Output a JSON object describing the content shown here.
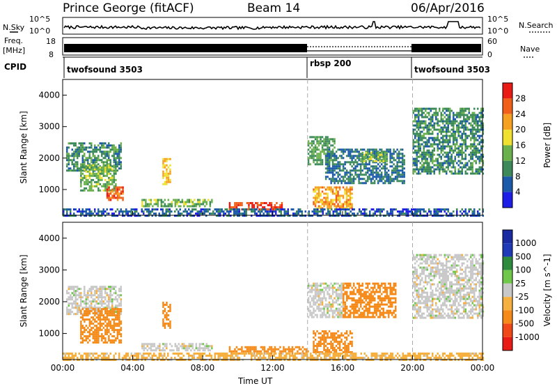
{
  "header": {
    "station": "Prince George (fitACF)",
    "beam": "Beam 14",
    "date": "06/Apr/2016"
  },
  "strip_labels": {
    "nsky": "N.Sky",
    "nsearch": "N.Search",
    "freq_line1": "Freq.",
    "freq_line2": "[MHz]",
    "nave": "Nave",
    "cpid": "CPID"
  },
  "strip_ticks": {
    "noise_left_top": "10^5",
    "noise_left_bottom": "10^0",
    "noise_right_top": "10^5",
    "noise_right_bottom": "10^0",
    "freq_left_top": "18",
    "freq_left_bottom": "8",
    "nave_right_top": "60",
    "nave_right_bottom": "0"
  },
  "cpid_segments": [
    {
      "label": "twofsound 3503",
      "start_hour": 0,
      "end_hour": 14
    },
    {
      "label": "rbsp 200",
      "start_hour": 14,
      "end_hour": 20
    },
    {
      "label": "twofsound 3503",
      "start_hour": 20,
      "end_hour": 24
    }
  ],
  "colors": {
    "power": [
      "#1e1ee6",
      "#1a5aa8",
      "#3c8a5a",
      "#6ab04c",
      "#f0e030",
      "#f5a020",
      "#f06018",
      "#e81c14"
    ],
    "velocity": [
      "#e81c14",
      "#f04818",
      "#f58a18",
      "#f5b040",
      "#c8c8c8",
      "#70c84a",
      "#2e8a3c",
      "#1e3ab8",
      "#1a2aa0"
    ]
  },
  "chart_data": [
    {
      "type": "heatmap",
      "name": "power",
      "ylabel": "Slant Range [km]",
      "xlabel": "",
      "xlim": [
        0,
        24
      ],
      "ylim": [
        180,
        4500
      ],
      "x_ticks": [
        "00:00",
        "04:00",
        "08:00",
        "12:00",
        "16:00",
        "20:00",
        "00:00"
      ],
      "y_ticks": [
        1000,
        2000,
        3000,
        4000
      ],
      "colorbar": {
        "label": "Power [dB]",
        "ticks": [
          "4",
          "8",
          "12",
          "16",
          "20",
          "24",
          "28"
        ]
      },
      "regions": [
        {
          "t": [
            0.2,
            3.3
          ],
          "r": [
            1600,
            2500
          ],
          "v": 10
        },
        {
          "t": [
            1.0,
            3.0
          ],
          "r": [
            1000,
            1800
          ],
          "v": 14
        },
        {
          "t": [
            2.5,
            3.4
          ],
          "r": [
            700,
            1100
          ],
          "v": 26
        },
        {
          "t": [
            5.7,
            6.1
          ],
          "r": [
            1200,
            2000
          ],
          "v": 20
        },
        {
          "t": [
            4.5,
            8.5
          ],
          "r": [
            500,
            700
          ],
          "v": 14
        },
        {
          "t": [
            9.5,
            12.5
          ],
          "r": [
            400,
            600
          ],
          "v": 28
        },
        {
          "t": [
            14.0,
            15.5
          ],
          "r": [
            1800,
            2700
          ],
          "v": 12
        },
        {
          "t": [
            14.3,
            16.5
          ],
          "r": [
            400,
            1100
          ],
          "v": 22
        },
        {
          "t": [
            15.0,
            19.5
          ],
          "r": [
            1200,
            2300
          ],
          "v": 8
        },
        {
          "t": [
            17.0,
            18.5
          ],
          "r": [
            1900,
            2200
          ],
          "v": 14
        },
        {
          "t": [
            20.0,
            24.0
          ],
          "r": [
            1500,
            3600
          ],
          "v": 10
        },
        {
          "t": [
            0.0,
            24.0
          ],
          "r": [
            180,
            400
          ],
          "v": 6
        }
      ]
    },
    {
      "type": "heatmap",
      "name": "velocity",
      "ylabel": "Slant Range [km]",
      "xlabel": "Time UT",
      "xlim": [
        0,
        24
      ],
      "ylim": [
        180,
        4500
      ],
      "x_ticks": [
        "00:00",
        "04:00",
        "08:00",
        "12:00",
        "16:00",
        "20:00",
        "00:00"
      ],
      "y_ticks": [
        1000,
        2000,
        3000,
        4000
      ],
      "colorbar": {
        "label": "Velocity [m s^-1]",
        "ticks": [
          "1000",
          "500",
          "100",
          "25",
          "-25",
          "-100",
          "-500",
          "-1000"
        ]
      },
      "regions": [
        {
          "t": [
            0.2,
            3.3
          ],
          "r": [
            1600,
            2500
          ],
          "v": 0
        },
        {
          "t": [
            1.0,
            3.3
          ],
          "r": [
            700,
            1800
          ],
          "v": -200
        },
        {
          "t": [
            5.7,
            6.1
          ],
          "r": [
            1200,
            2000
          ],
          "v": -200
        },
        {
          "t": [
            4.5,
            8.5
          ],
          "r": [
            500,
            700
          ],
          "v": 0
        },
        {
          "t": [
            9.5,
            14.0
          ],
          "r": [
            400,
            600
          ],
          "v": -150
        },
        {
          "t": [
            14.0,
            16.0
          ],
          "r": [
            1500,
            2600
          ],
          "v": 0
        },
        {
          "t": [
            16.0,
            19.0
          ],
          "r": [
            1500,
            2600
          ],
          "v": -300
        },
        {
          "t": [
            14.3,
            16.5
          ],
          "r": [
            400,
            1100
          ],
          "v": -200
        },
        {
          "t": [
            20.0,
            24.0
          ],
          "r": [
            1500,
            3500
          ],
          "v": 0
        },
        {
          "t": [
            0.0,
            24.0
          ],
          "r": [
            180,
            400
          ],
          "v": -50
        }
      ]
    }
  ]
}
